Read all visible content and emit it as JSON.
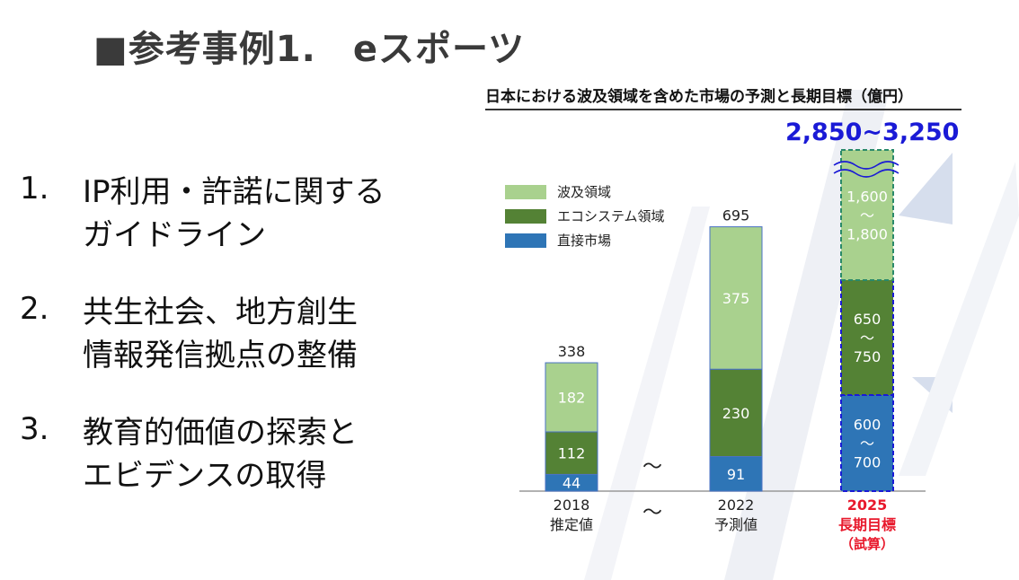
{
  "slide": {
    "title": "■参考事例1.　eスポーツ",
    "items": [
      {
        "num": "1.",
        "lines": [
          "IP利用・許諾に関する",
          "ガイドライン"
        ]
      },
      {
        "num": "2.",
        "lines": [
          "共生社会、地方創生",
          "情報発信拠点の整備"
        ]
      },
      {
        "num": "3.",
        "lines": [
          "教育的価値の探索と",
          "エビデンスの取得"
        ]
      }
    ]
  },
  "chart_data": {
    "type": "bar",
    "stacked": true,
    "title": "日本における波及領域を含めた市場の予測と長期目標（億円）",
    "target_total_label": "2,850~3,250",
    "categories": [
      {
        "year": "2018",
        "label": "推定値",
        "sub": ""
      },
      {
        "year": "2022",
        "label": "予測値",
        "sub": ""
      },
      {
        "year": "2025",
        "label": "長期目標",
        "sub": "（試算）"
      }
    ],
    "totals": [
      "338",
      "695",
      ""
    ],
    "series": [
      {
        "name": "直接市場",
        "color": "#2e75b6",
        "values": [
          44,
          91,
          [
            600,
            700
          ]
        ],
        "labels": [
          "44",
          "91",
          "600\n〜\n700"
        ]
      },
      {
        "name": "エコシステム領域",
        "color": "#548235",
        "values": [
          112,
          230,
          [
            650,
            750
          ]
        ],
        "labels": [
          "112",
          "230",
          "650\n〜\n750"
        ]
      },
      {
        "name": "波及領域",
        "color": "#a9d18e",
        "values": [
          182,
          375,
          [
            1600,
            1800
          ]
        ],
        "labels": [
          "182",
          "375",
          "1,600\n〜\n1,800"
        ]
      }
    ],
    "legend_order": [
      "波及領域",
      "エコシステム領域",
      "直接市場"
    ],
    "gap_marks": [
      "〜",
      "〜"
    ],
    "highlight_color": "#e8192c",
    "target_color": "#1a1ad6"
  }
}
